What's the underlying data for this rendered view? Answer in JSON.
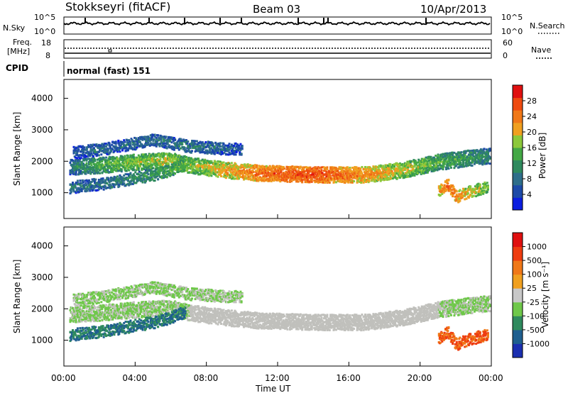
{
  "header": {
    "station": "Stokkseyri (fitACF)",
    "beam": "Beam 03",
    "date": "10/Apr/2013"
  },
  "noise_panel": {
    "left_label": "N.Sky",
    "right_label": "N.Search",
    "left_ticks": [
      "10^5",
      "10^0"
    ],
    "right_ticks": [
      "10^5",
      "10^0"
    ]
  },
  "freq_panel": {
    "left_label_line1": "Freq.",
    "left_label_line2": "[MHz]",
    "left_ticks": [
      "18",
      "8"
    ],
    "right_label": "Nave",
    "right_ticks": [
      "60",
      "0"
    ]
  },
  "cpid_panel": {
    "label": "CPID",
    "value": "normal (fast) 151"
  },
  "colors": {
    "power_scale": [
      "#0b1ee0",
      "#1d4aa8",
      "#2e6e8a",
      "#2f8a5e",
      "#43a845",
      "#8cc83a",
      "#f0a020",
      "#f07818",
      "#ee4a10",
      "#e01010"
    ],
    "velocity_scale": [
      "#1b2fb0",
      "#1f5f8f",
      "#2f8a5e",
      "#6fc84a",
      "#c8c8c8",
      "#f0a020",
      "#f07818",
      "#ee3c10",
      "#e01010"
    ],
    "ground_scatter": "#c0c0bc"
  },
  "chart_data": [
    {
      "type": "heatmap",
      "title": "",
      "xlabel": "Time UT",
      "ylabel": "Slant Range [km]",
      "x_ticks": [
        "00:00",
        "04:00",
        "08:00",
        "12:00",
        "16:00",
        "20:00",
        "00:00"
      ],
      "x_range_hours": [
        0,
        24
      ],
      "y_ticks": [
        "1000",
        "2000",
        "3000",
        "4000"
      ],
      "y_range_km": [
        180,
        4600
      ],
      "colorbar": {
        "label": "Power [dB]",
        "ticks": [
          "4",
          "8",
          "12",
          "16",
          "20",
          "24",
          "28"
        ],
        "range": [
          0,
          30
        ]
      },
      "echo_bands": [
        {
          "description": "main band",
          "points": [
            [
              0.3,
              1850,
              9
            ],
            [
              2,
              1900,
              14
            ],
            [
              4,
              2000,
              16
            ],
            [
              6,
              2050,
              18
            ],
            [
              7,
              1900,
              16
            ],
            [
              9,
              1750,
              20
            ],
            [
              11,
              1650,
              24
            ],
            [
              14,
              1600,
              26
            ],
            [
              17,
              1600,
              22
            ],
            [
              19,
              1750,
              18
            ],
            [
              21,
              2000,
              14
            ],
            [
              23,
              2150,
              12
            ],
            [
              23.9,
              2200,
              10
            ]
          ]
        },
        {
          "description": "lower diagonal band",
          "points": [
            [
              0.3,
              1200,
              8
            ],
            [
              2,
              1300,
              8
            ],
            [
              3.5,
              1450,
              10
            ],
            [
              5,
              1600,
              12
            ],
            [
              6,
              1750,
              14
            ],
            [
              6.8,
              1950,
              16
            ]
          ]
        },
        {
          "description": "upper band",
          "points": [
            [
              0.5,
              2300,
              6
            ],
            [
              2,
              2400,
              8
            ],
            [
              3,
              2500,
              7
            ],
            [
              5,
              2700,
              8
            ],
            [
              7,
              2500,
              9
            ],
            [
              10,
              2400,
              6
            ]
          ]
        },
        {
          "description": "post-sunset patch",
          "points": [
            [
              21,
              1100,
              20
            ],
            [
              21.5,
              1300,
              24
            ],
            [
              22,
              900,
              22
            ],
            [
              23,
              1100,
              18
            ],
            [
              23.8,
              1200,
              16
            ]
          ]
        }
      ]
    },
    {
      "type": "heatmap",
      "title": "",
      "xlabel": "Time UT",
      "ylabel": "Slant Range [km]",
      "x_ticks": [
        "00:00",
        "04:00",
        "08:00",
        "12:00",
        "16:00",
        "20:00",
        "00:00"
      ],
      "x_range_hours": [
        0,
        24
      ],
      "y_ticks": [
        "1000",
        "2000",
        "3000",
        "4000"
      ],
      "y_range_km": [
        180,
        4600
      ],
      "colorbar": {
        "label": "Velocity [m s⁻¹]",
        "ticks": [
          "1000",
          "500",
          "100",
          "25",
          "-25",
          "-100",
          "-500",
          "-1000"
        ],
        "range": [
          -1200,
          1200
        ]
      },
      "legend_placement": "right",
      "ground_scatter_present": true
    }
  ]
}
